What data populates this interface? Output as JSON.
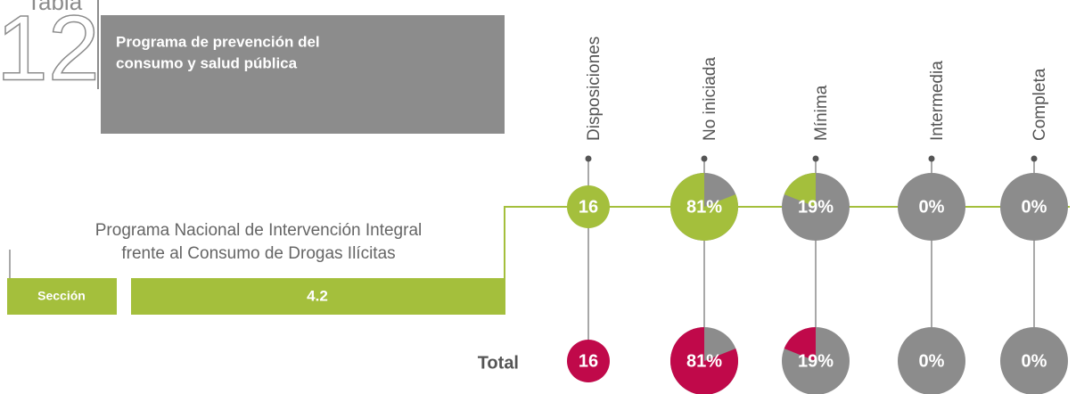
{
  "header": {
    "word": "Tabla",
    "number": "12",
    "title_lines": [
      "Programa de prevención del",
      "consumo y salud pública"
    ]
  },
  "program": {
    "name_lines": [
      "Programa Nacional de Intervención Integral",
      "frente al Consumo de Drogas Ilícitas"
    ],
    "section_label": "Sección",
    "section": "4.2"
  },
  "count_header": "Disposiciones",
  "share_headers": [
    "No iniciada",
    "Mínima",
    "Intermedia",
    "Completa"
  ],
  "rows": [
    {
      "color": "#a4bf3c",
      "count": 16,
      "shares": [
        81,
        19,
        0,
        0
      ],
      "share_labels": [
        "81%",
        "19%",
        "0%",
        "0%"
      ]
    },
    {
      "name": "Total",
      "color": "#c0094a",
      "count": 16,
      "shares": [
        81,
        19,
        0,
        0
      ],
      "share_labels": [
        "81%",
        "19%",
        "0%",
        "0%"
      ]
    }
  ],
  "base_color": "#8c8c8c"
}
